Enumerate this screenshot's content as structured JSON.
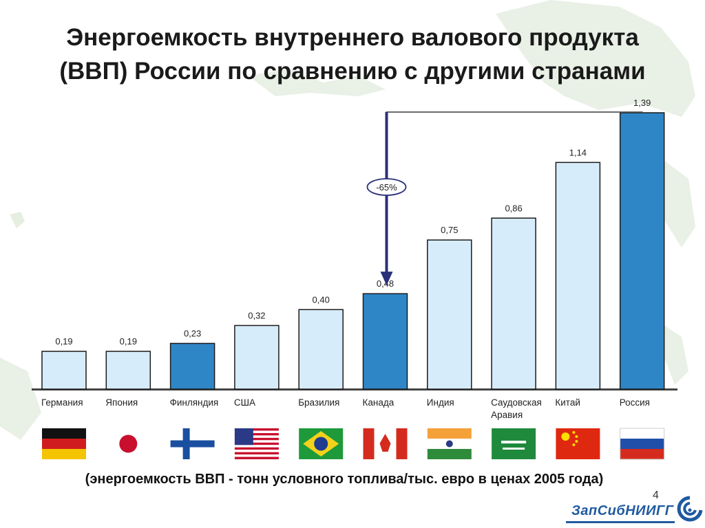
{
  "title_lines": [
    "Энергоемкость внутреннего валового продукта",
    "(ВВП) России по сравнению с другими странами"
  ],
  "caption": "(энергоемкость ВВП - тонн условного топлива/тыс. евро в ценах 2005 года)",
  "page_number": "4",
  "logo_text": "ЗапСибНИИГГ",
  "colors": {
    "bar_light": "#d7ecfb",
    "bar_dark": "#2f86c6",
    "bar_stroke": "#1a1a1a",
    "arrow": "#2a2f7a",
    "baseline": "#444444",
    "map": "#e9f0e6"
  },
  "chart_data": {
    "type": "bar",
    "title": "",
    "xlabel": "",
    "ylabel": "",
    "categories": [
      "Германия",
      "Япония",
      "Финляндия",
      "США",
      "Бразилия",
      "Канада",
      "Индия",
      "Саудовская Аравия",
      "Китай",
      "Россия"
    ],
    "category_lines": [
      [
        "Германия"
      ],
      [
        "Япония"
      ],
      [
        "Финляндия"
      ],
      [
        "США"
      ],
      [
        "Бразилия"
      ],
      [
        "Канада"
      ],
      [
        "Индия"
      ],
      [
        "Саудовская",
        "Аравия"
      ],
      [
        "Китай"
      ],
      [
        "Россия"
      ]
    ],
    "values": [
      0.19,
      0.19,
      0.23,
      0.32,
      0.4,
      0.48,
      0.75,
      0.86,
      1.14,
      1.39
    ],
    "value_labels": [
      "0,19",
      "0,19",
      "0,23",
      "0,32",
      "0,40",
      "0,48",
      "0,75",
      "0,86",
      "1,14",
      "1,39"
    ],
    "highlighted": [
      "Финляндия",
      "Канада",
      "Россия"
    ],
    "ylim": [
      0,
      1.39
    ],
    "grid": false,
    "annotation": {
      "text": "-65%",
      "from": "Россия",
      "to": "Канада"
    },
    "flags": [
      "germany",
      "japan",
      "finland",
      "usa",
      "brazil",
      "canada",
      "india",
      "saudi-arabia",
      "china",
      "russia"
    ]
  }
}
